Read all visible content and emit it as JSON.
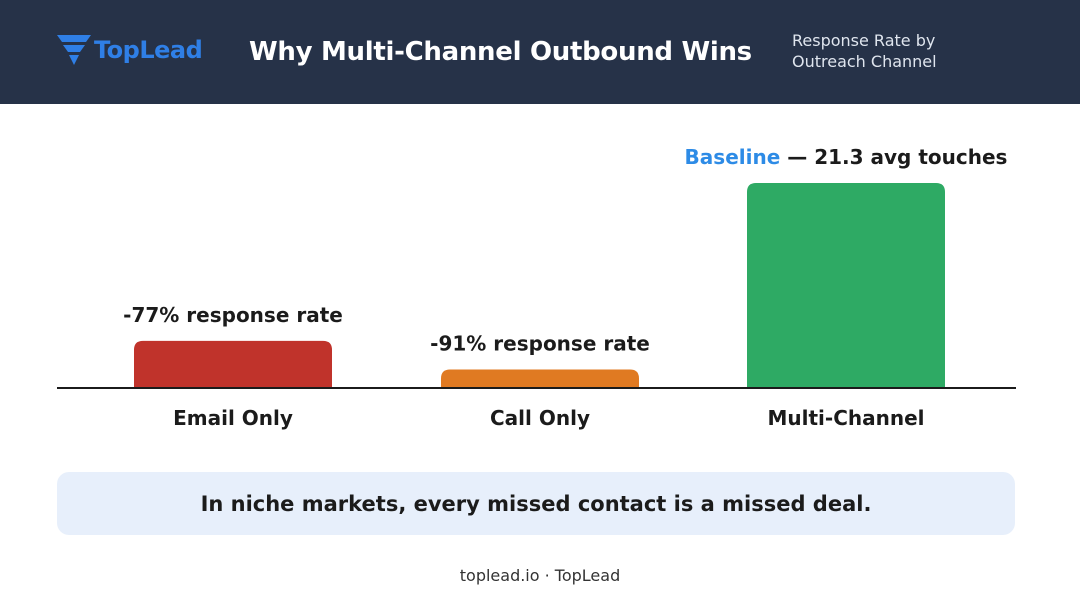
{
  "header": {
    "logo_text": "TopLead",
    "title": "Why Multi-Channel Outbound Wins",
    "subtitle_line1": "Response Rate by",
    "subtitle_line2": "Outreach Channel",
    "background": "#263248",
    "logo_color": "#2f7fe6",
    "logo_icon": "funnel-icon"
  },
  "chart_data": {
    "type": "bar",
    "title": "Response Rate by Outreach Channel",
    "categories": [
      "Email Only",
      "Call Only",
      "Multi-Channel"
    ],
    "values": [
      23,
      9,
      100
    ],
    "bar_labels": [
      "-77% response rate",
      "-91% response rate",
      ""
    ],
    "multi_label": {
      "highlight": "Baseline",
      "rest": " — 21.3 avg touches"
    },
    "colors": [
      "#c0332b",
      "#e07a22",
      "#2eaa64"
    ],
    "highlight_color": "#2d8be6",
    "ylim": [
      0,
      100
    ],
    "grid": false,
    "legend": "none"
  },
  "callout": {
    "text": "In niche markets, every missed contact is a missed deal."
  },
  "footer": {
    "text": "toplead.io · TopLead"
  }
}
